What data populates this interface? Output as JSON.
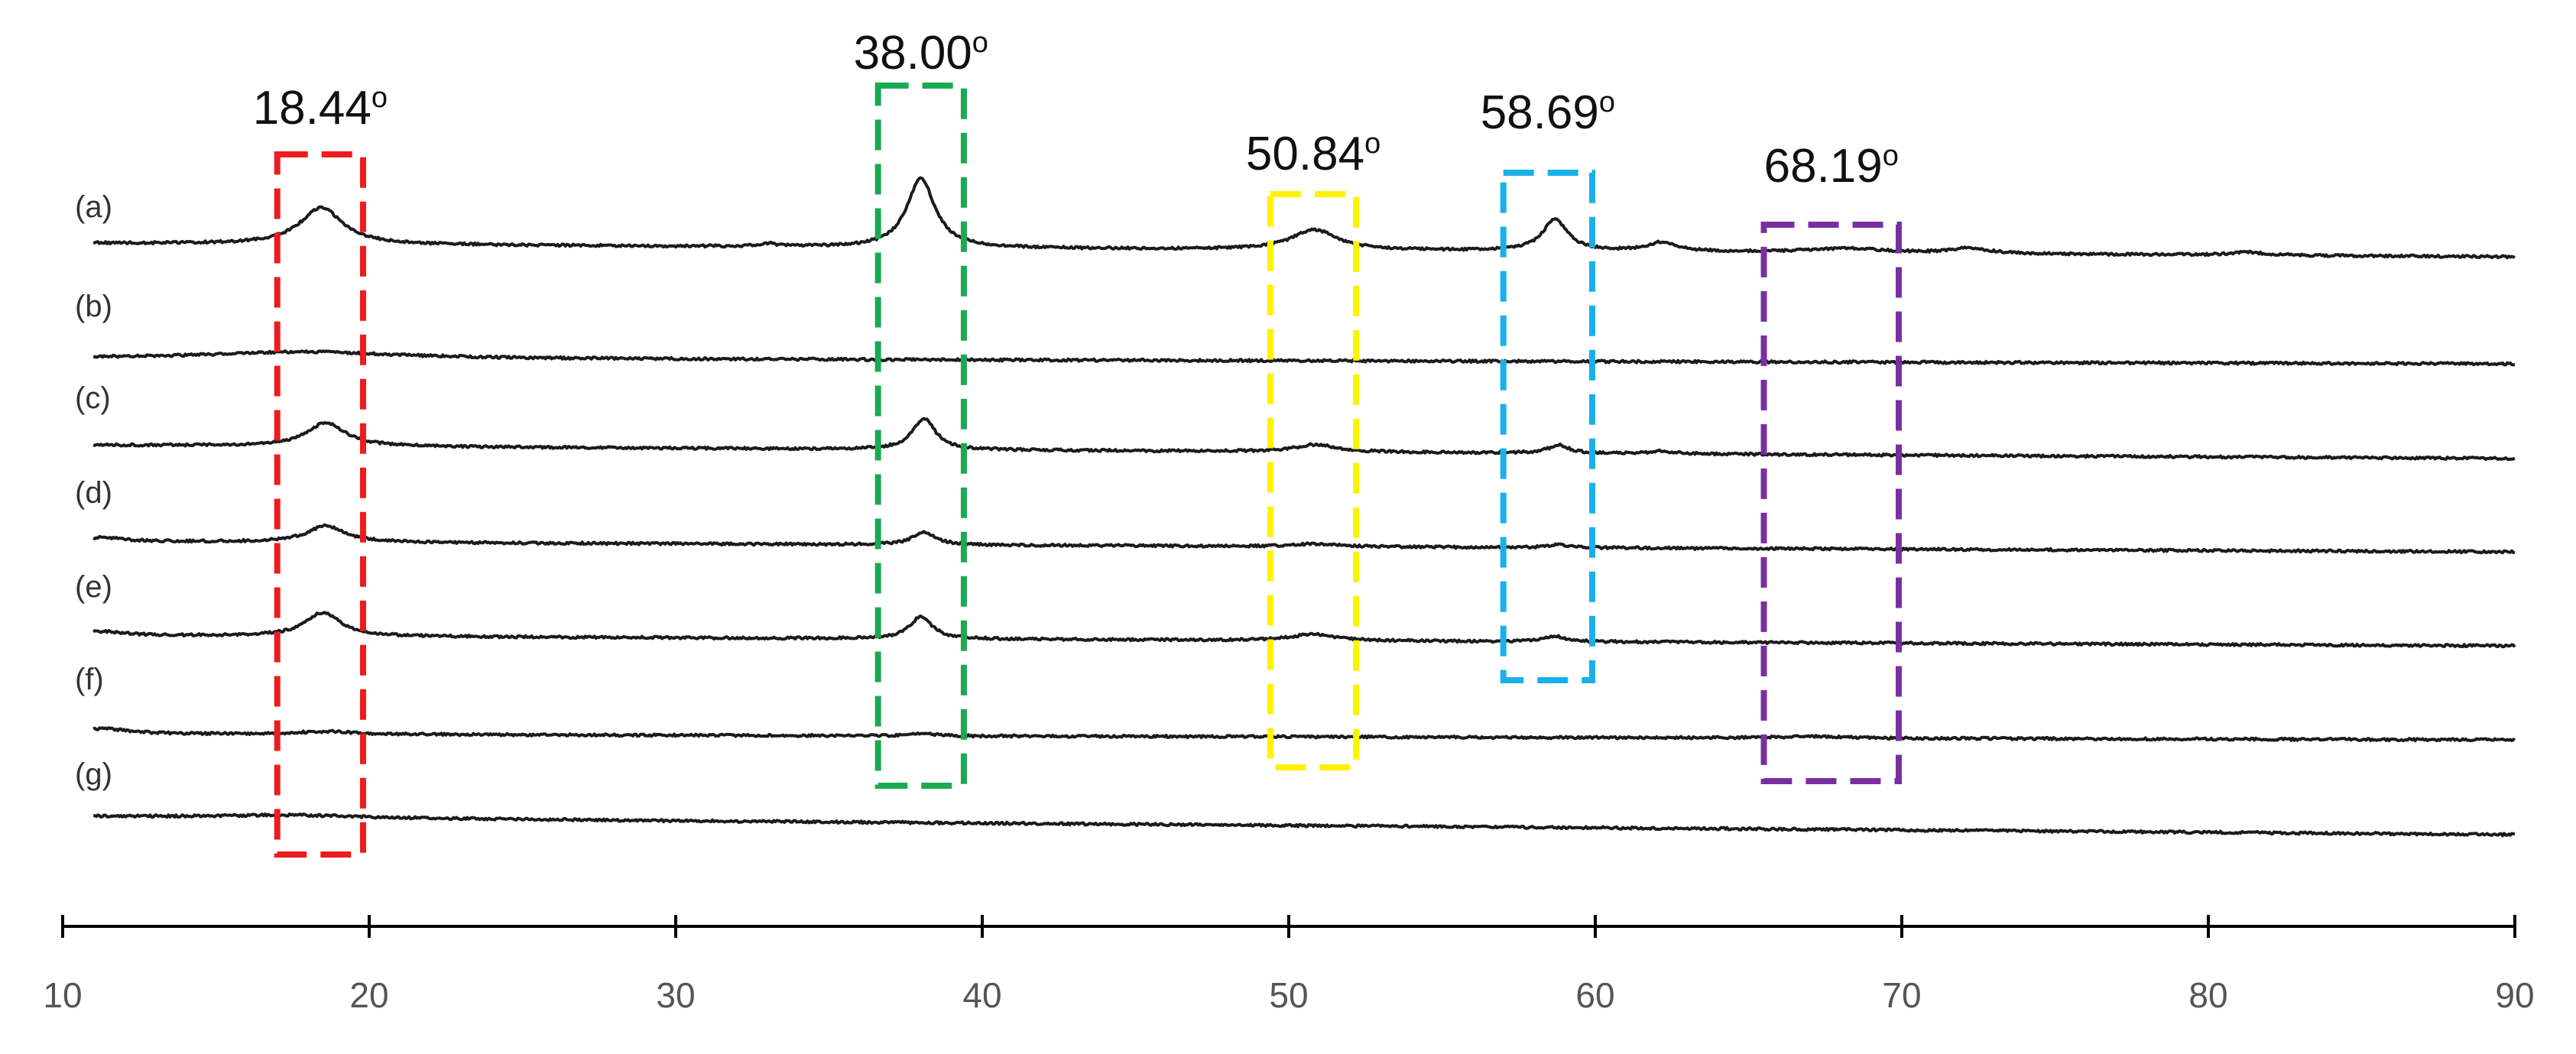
{
  "chart_data": {
    "type": "line",
    "title": "",
    "xlabel": "",
    "ylabel": "",
    "xlim": [
      10,
      90
    ],
    "x_ticks": [
      10,
      20,
      30,
      40,
      50,
      60,
      70,
      80,
      90
    ],
    "y_axis_shown": false,
    "grid": false,
    "series": [
      {
        "name": "(a)",
        "peaks": [
          {
            "x": 18.44,
            "height": 1.0,
            "width": 0.85
          },
          {
            "x": 33.0,
            "height": 0.08,
            "width": 0.35
          },
          {
            "x": 38.0,
            "height": 1.9,
            "width": 0.55
          },
          {
            "x": 50.84,
            "height": 0.55,
            "width": 0.9
          },
          {
            "x": 58.69,
            "height": 0.85,
            "width": 0.5
          },
          {
            "x": 62.2,
            "height": 0.25,
            "width": 0.6
          },
          {
            "x": 68.19,
            "height": 0.12,
            "width": 1.6
          },
          {
            "x": 72.2,
            "height": 0.15,
            "width": 0.7
          },
          {
            "x": 81.3,
            "height": 0.08,
            "width": 0.7
          }
        ]
      },
      {
        "name": "(b)",
        "peaks": [
          {
            "x": 18.0,
            "height": 0.18,
            "width": 3.5
          }
        ]
      },
      {
        "name": "(c)",
        "peaks": [
          {
            "x": 18.6,
            "height": 0.65,
            "width": 0.75
          },
          {
            "x": 38.1,
            "height": 0.85,
            "width": 0.45
          },
          {
            "x": 50.9,
            "height": 0.2,
            "width": 0.8
          },
          {
            "x": 58.8,
            "height": 0.22,
            "width": 0.4
          },
          {
            "x": 62.2,
            "height": 0.07,
            "width": 0.5
          }
        ]
      },
      {
        "name": "(d)",
        "peaks": [
          {
            "x": 11.3,
            "height": 0.1,
            "width": 0.8
          },
          {
            "x": 18.6,
            "height": 0.45,
            "width": 0.75
          },
          {
            "x": 38.1,
            "height": 0.35,
            "width": 0.45
          },
          {
            "x": 50.9,
            "height": 0.08,
            "width": 0.8
          },
          {
            "x": 58.8,
            "height": 0.08,
            "width": 0.4
          }
        ]
      },
      {
        "name": "(e)",
        "peaks": [
          {
            "x": 11.3,
            "height": 0.1,
            "width": 0.8
          },
          {
            "x": 18.5,
            "height": 0.65,
            "width": 0.7
          },
          {
            "x": 38.0,
            "height": 0.6,
            "width": 0.45
          },
          {
            "x": 50.8,
            "height": 0.18,
            "width": 0.8
          },
          {
            "x": 58.7,
            "height": 0.15,
            "width": 0.4
          }
        ]
      },
      {
        "name": "(f)",
        "peaks": [
          {
            "x": 11.3,
            "height": 0.14,
            "width": 1.0
          },
          {
            "x": 18.6,
            "height": 0.08,
            "width": 1.2
          },
          {
            "x": 38.1,
            "height": 0.06,
            "width": 0.5
          },
          {
            "x": 67.2,
            "height": 0.05,
            "width": 1.2
          }
        ]
      },
      {
        "name": "(g)",
        "peaks": [
          {
            "x": 17.5,
            "height": 0.08,
            "width": 3.0
          }
        ]
      }
    ],
    "annotations": [
      {
        "label": "18.44",
        "x_range": [
          17.0,
          19.8
        ],
        "color": "#ee1c1c"
      },
      {
        "label": "38.00",
        "x_range": [
          36.6,
          39.4
        ],
        "color": "#1aaa50"
      },
      {
        "label": "50.84",
        "x_range": [
          49.4,
          52.2
        ],
        "color": "#fff200"
      },
      {
        "label": "58.69",
        "x_range": [
          57.0,
          59.9
        ],
        "color": "#19b0ea"
      },
      {
        "label": "68.19",
        "x_range": [
          65.5,
          69.9
        ],
        "color": "#7a2fa0"
      }
    ],
    "degree_mark": "o"
  }
}
